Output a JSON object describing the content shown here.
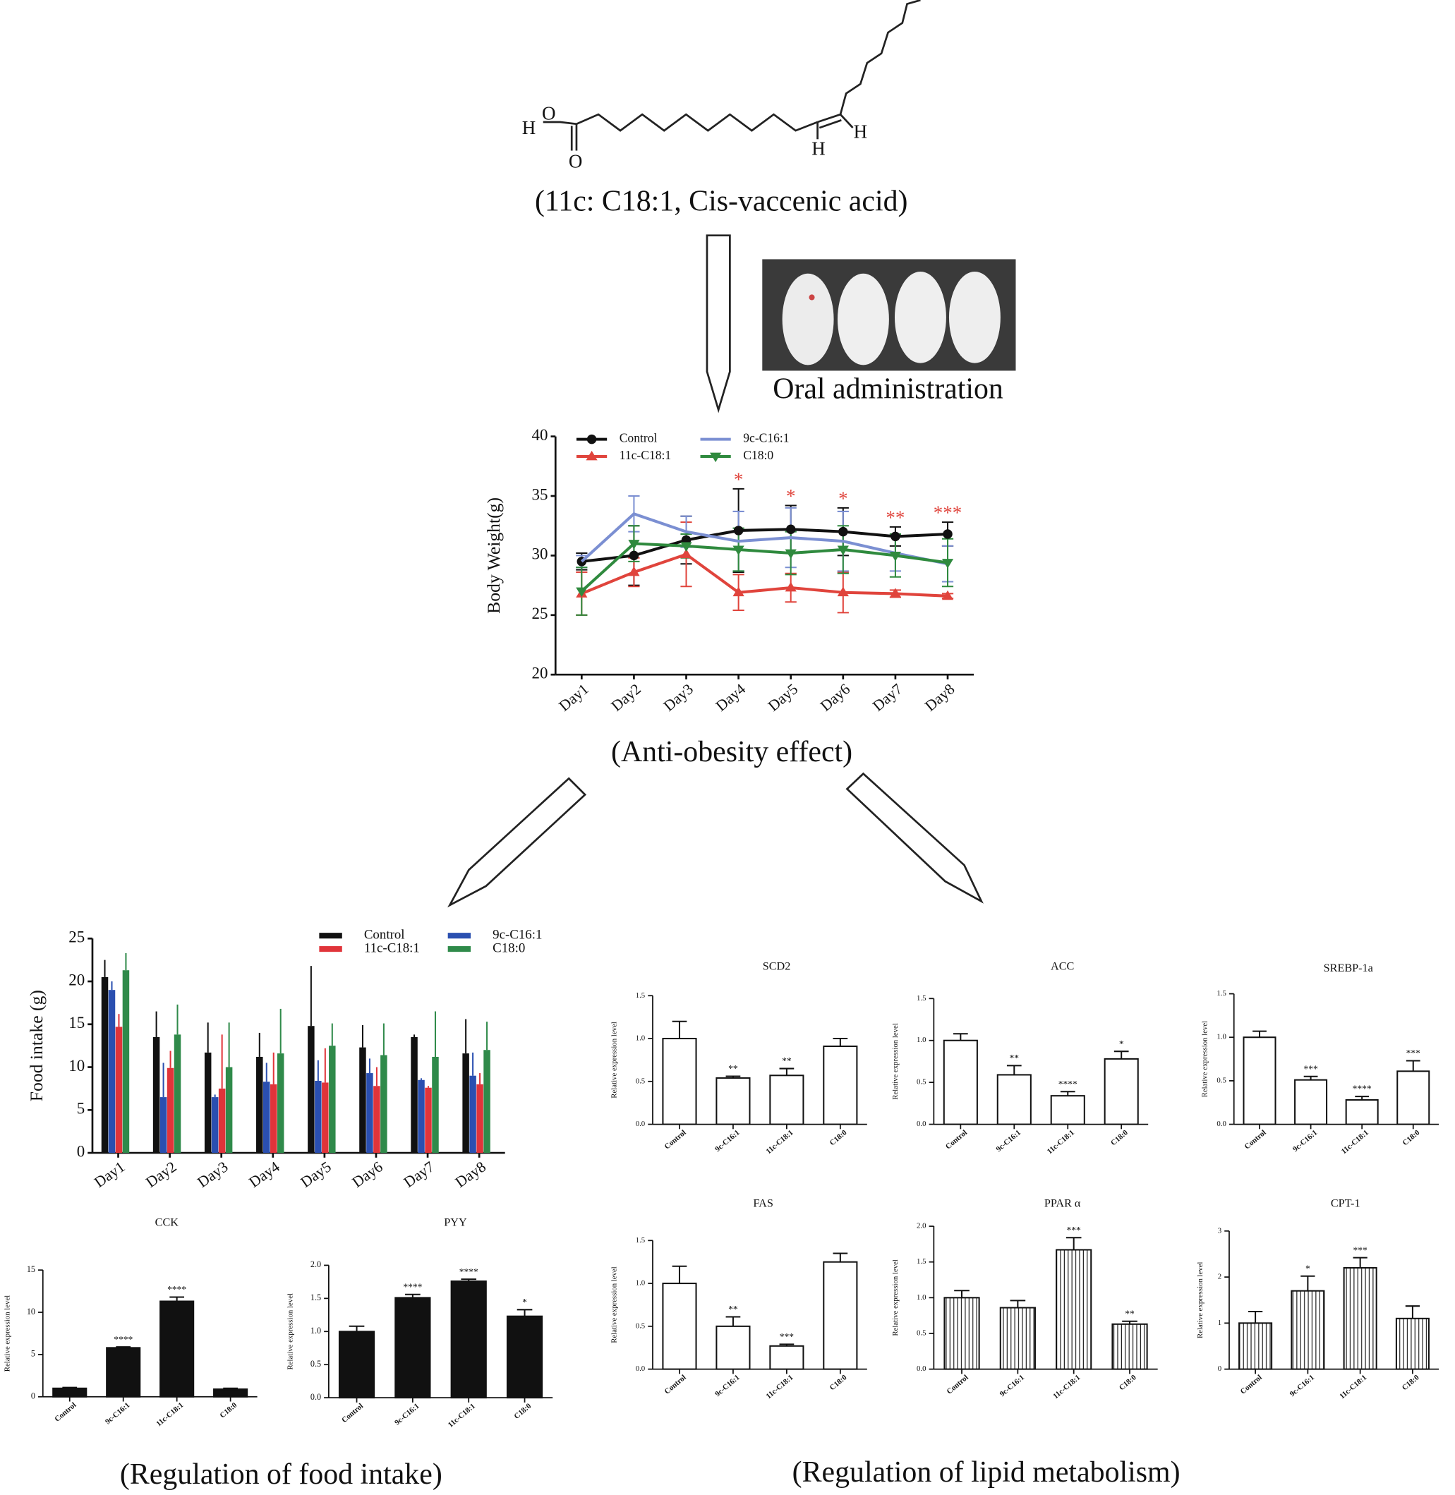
{
  "structure": {
    "atoms": [
      "H",
      "O",
      "O",
      "H",
      "H"
    ],
    "caption": "(11c: C18:1, Cis-vaccenic acid)"
  },
  "photo_caption": "Oral administration",
  "captions": {
    "body": "(Anti-obesity effect)",
    "food": "(Regulation of food intake)",
    "lipid": "(Regulation of lipid metabolism)"
  },
  "chart_data": [
    {
      "type": "line",
      "y_label": "Body Weight(g)",
      "categories": [
        "Day1",
        "Day2",
        "Day3",
        "Day4",
        "Day5",
        "Day6",
        "Day7",
        "Day8"
      ],
      "ylim": [
        20,
        40
      ],
      "yticks": [
        20,
        25,
        30,
        35,
        40
      ],
      "series": [
        {
          "name": "Control",
          "color": "#111111",
          "marker": "circle",
          "values": [
            29.5,
            30,
            31.3,
            32.1,
            32.2,
            32,
            31.6,
            31.8
          ],
          "errors": [
            0.7,
            2.5,
            2,
            3.5,
            2,
            2,
            0.8,
            1
          ]
        },
        {
          "name": "11c-C18:1",
          "color": "#e0443c",
          "marker": "triangle",
          "values": [
            26.8,
            28.6,
            30.1,
            26.9,
            27.3,
            26.9,
            26.8,
            26.6
          ],
          "errors": [
            1.8,
            1.2,
            2.7,
            1.5,
            1.2,
            1.7,
            0.3,
            0.2
          ],
          "significance": [
            null,
            null,
            null,
            "*",
            "*",
            "*",
            "**",
            "***"
          ]
        },
        {
          "name": "9c-C16:1",
          "color": "#7b8fd2",
          "marker": "none",
          "values": [
            29.5,
            33.5,
            32,
            31.2,
            31.5,
            31.2,
            30.2,
            29.3
          ],
          "errors": [
            0.5,
            1.5,
            1.3,
            2.5,
            2.5,
            2.5,
            1.5,
            1.5
          ]
        },
        {
          "name": "C18:0",
          "color": "#2f8a3e",
          "marker": "down-triangle",
          "values": [
            27,
            31,
            30.8,
            30.5,
            30.2,
            30.5,
            30,
            29.4
          ],
          "errors": [
            2,
            1.5,
            1,
            1.8,
            1.8,
            2,
            1.8,
            2
          ]
        }
      ]
    },
    {
      "type": "bar",
      "y_label": "Food intake (g)",
      "categories": [
        "Day1",
        "Day2",
        "Day3",
        "Day4",
        "Day5",
        "Day6",
        "Day7",
        "Day8"
      ],
      "ylim": [
        0,
        25
      ],
      "yticks": [
        0,
        5,
        10,
        15,
        20,
        25
      ],
      "series": [
        {
          "name": "Control",
          "color": "#111111",
          "values": [
            20.5,
            13.5,
            11.7,
            11.2,
            14.8,
            12.3,
            13.5,
            11.6
          ],
          "errors": [
            2,
            3,
            3.5,
            2.8,
            7,
            2.6,
            0.3,
            4
          ]
        },
        {
          "name": "9c-C16:1",
          "color": "#2a4fb0",
          "values": [
            19,
            6.5,
            6.5,
            8.3,
            8.4,
            9.3,
            8.5,
            9
          ],
          "errors": [
            1,
            4,
            0.3,
            2.2,
            2.4,
            1.7,
            0.2,
            2.7
          ]
        },
        {
          "name": "11c-C18:1",
          "color": "#e0343a",
          "values": [
            14.7,
            9.9,
            7.5,
            8,
            8.2,
            7.8,
            7.6,
            8
          ],
          "errors": [
            1.5,
            2,
            6.3,
            3.7,
            4,
            2.2,
            0.2,
            1.3
          ]
        },
        {
          "name": "C18:0",
          "color": "#2f8a4a",
          "values": [
            21.3,
            13.8,
            10,
            11.6,
            12.5,
            11.4,
            11.2,
            12
          ],
          "errors": [
            2,
            3.5,
            5.2,
            5.2,
            2.6,
            3.7,
            5.3,
            3.3
          ]
        }
      ]
    },
    {
      "type": "bar",
      "title": "CCK",
      "y_label": "Relative expression level",
      "color": "#111111",
      "categories": [
        "Control",
        "9c-C16:1",
        "11c-C18:1",
        "C18:0"
      ],
      "ylim": [
        0,
        15
      ],
      "yticks": [
        0,
        5,
        10,
        15
      ],
      "values": [
        1,
        5.8,
        11.3,
        0.9
      ],
      "errors": [
        0.1,
        0.1,
        0.5,
        0.1
      ],
      "significance": [
        null,
        "****",
        "****",
        null
      ]
    },
    {
      "type": "bar",
      "title": "PYY",
      "y_label": "Relative expression level",
      "color": "#111111",
      "categories": [
        "Control",
        "9c-C16:1",
        "11c-C18:1",
        "C18:0"
      ],
      "ylim": [
        0,
        2
      ],
      "yticks": [
        {
          "value": 0,
          "label": "0.0"
        },
        0.5,
        {
          "value": 1,
          "label": "1.0"
        },
        1.5,
        {
          "value": 2,
          "label": "2.0"
        }
      ],
      "values": [
        1,
        1.51,
        1.76,
        1.23
      ],
      "errors": [
        0.08,
        0.05,
        0.03,
        0.1
      ],
      "significance": [
        null,
        "****",
        "****",
        "*"
      ]
    },
    {
      "type": "bar",
      "title": "SCD2",
      "y_label": "Relative expression level",
      "color": "#ffffff",
      "categories": [
        "Control",
        "9c-C16:1",
        "11c-C18:1",
        "C18:0"
      ],
      "ylim": [
        0,
        1.5
      ],
      "yticks": [
        {
          "value": 0,
          "label": "0.0"
        },
        0.5,
        {
          "value": 1,
          "label": "1.0"
        },
        1.5
      ],
      "values": [
        1,
        0.54,
        0.57,
        0.91
      ],
      "errors": [
        0.2,
        0.02,
        0.08,
        0.09
      ],
      "significance": [
        null,
        "**",
        "**",
        null
      ]
    },
    {
      "type": "bar",
      "title": "ACC",
      "y_label": "Relative expression level",
      "color": "#ffffff",
      "categories": [
        "Control",
        "9c-C16:1",
        "11c-C18:1",
        "C18:0"
      ],
      "ylim": [
        0,
        1.5
      ],
      "yticks": [
        {
          "value": 0,
          "label": "0.0"
        },
        0.5,
        {
          "value": 1,
          "label": "1.0"
        },
        1.5
      ],
      "values": [
        1,
        0.59,
        0.34,
        0.78
      ],
      "errors": [
        0.08,
        0.11,
        0.05,
        0.09
      ],
      "significance": [
        null,
        "**",
        "****",
        "*"
      ]
    },
    {
      "type": "bar",
      "title": "SREBP-1a",
      "y_label": "Relative expression level",
      "color": "#ffffff",
      "categories": [
        "Control",
        "9c-C16:1",
        "11c-C18:1",
        "C18:0"
      ],
      "ylim": [
        0,
        1.5
      ],
      "yticks": [
        {
          "value": 0,
          "label": "0.0"
        },
        0.5,
        {
          "value": 1,
          "label": "1.0"
        },
        1.5
      ],
      "values": [
        1,
        0.51,
        0.28,
        0.61
      ],
      "errors": [
        0.07,
        0.04,
        0.04,
        0.12
      ],
      "significance": [
        null,
        "***",
        "****",
        "***"
      ]
    },
    {
      "type": "bar",
      "title": "FAS",
      "y_label": "Relative expression level",
      "color": "#ffffff",
      "categories": [
        "Control",
        "9c-C16:1",
        "11c-C18:1",
        "C18:0"
      ],
      "ylim": [
        0,
        1.5
      ],
      "yticks": [
        {
          "value": 0,
          "label": "0.0"
        },
        0.5,
        {
          "value": 1,
          "label": "1.0"
        },
        1.5
      ],
      "values": [
        1,
        0.5,
        0.27,
        1.25
      ],
      "errors": [
        0.2,
        0.11,
        0.02,
        0.1
      ],
      "significance": [
        null,
        "**",
        "***",
        null
      ]
    },
    {
      "type": "bar",
      "title": "PPAR α",
      "y_label": "Relative expression level",
      "color": "#ffffff",
      "hatch": "vertical",
      "categories": [
        "Control",
        "9c-C16:1",
        "11c-C18:1",
        "C18:0"
      ],
      "ylim": [
        0,
        2
      ],
      "yticks": [
        {
          "value": 0,
          "label": "0.0"
        },
        0.5,
        {
          "value": 1,
          "label": "1.0"
        },
        1.5,
        {
          "value": 2,
          "label": "2.0"
        }
      ],
      "values": [
        1,
        0.86,
        1.67,
        0.63
      ],
      "errors": [
        0.1,
        0.1,
        0.17,
        0.04
      ],
      "significance": [
        null,
        null,
        "***",
        "**"
      ]
    },
    {
      "type": "bar",
      "title": "CPT-1",
      "y_label": "Relative expression level",
      "color": "#ffffff",
      "hatch": "vertical",
      "categories": [
        "Control",
        "9c-C16:1",
        "11c-C18:1",
        "C18:0"
      ],
      "ylim": [
        0,
        3
      ],
      "yticks": [
        0,
        1,
        2,
        3
      ],
      "values": [
        1,
        1.7,
        2.2,
        1.1
      ],
      "errors": [
        0.25,
        0.32,
        0.22,
        0.27
      ],
      "significance": [
        null,
        "*",
        "***",
        null
      ]
    }
  ]
}
